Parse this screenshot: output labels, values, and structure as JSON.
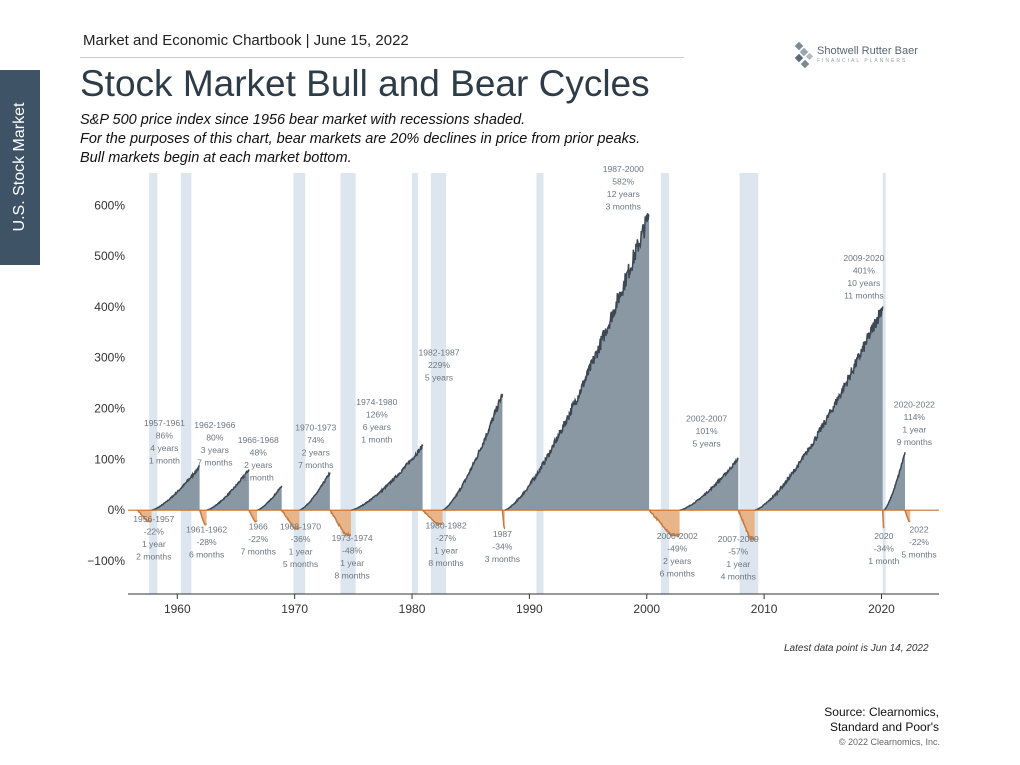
{
  "side_tab": "U.S. Stock Market",
  "header": {
    "line": "Market and Economic Chartbook | June 15, 2022",
    "title": "Stock Market Bull and Bear Cycles",
    "subtitles": [
      "S&P 500 price index since 1956 bear market with recessions shaded.",
      "For the purposes of this chart, bear markets are 20% declines in price from prior peaks.",
      "Bull markets begin at each market bottom."
    ]
  },
  "logo": {
    "name": "Shotwell Rutter Baer",
    "tagline": "FINANCIAL PLANNERS"
  },
  "footnote": "Latest data point is Jun 14, 2022",
  "source": [
    "Source: Clearnomics,",
    "Standard and Poor's"
  ],
  "copyright": "© 2022 Clearnomics, Inc.",
  "colors": {
    "bull_fill": "#8a98a4",
    "bull_line": "#3b4853",
    "bear_fill": "#e8b48a",
    "bear_line": "#c57a3f",
    "recession": "#dde6ef",
    "zero_line": "#c8722e"
  },
  "chart_data": {
    "type": "area",
    "title": "Stock Market Bull and Bear Cycles",
    "xlim": [
      1955.8,
      2024.9
    ],
    "ylim": [
      -165,
      640
    ],
    "y_ticks": [
      {
        "value": 600,
        "label": "600%"
      },
      {
        "value": 500,
        "label": "500%"
      },
      {
        "value": 400,
        "label": "400%"
      },
      {
        "value": 300,
        "label": "300%"
      },
      {
        "value": 200,
        "label": "200%"
      },
      {
        "value": 100,
        "label": "100%"
      },
      {
        "value": 0,
        "label": "0%"
      },
      {
        "value": -100,
        "label": "−100%"
      }
    ],
    "x_ticks": [
      {
        "value": 1960,
        "label": "1960"
      },
      {
        "value": 1970,
        "label": "1970"
      },
      {
        "value": 1980,
        "label": "1980"
      },
      {
        "value": 1990,
        "label": "1990"
      },
      {
        "value": 2000,
        "label": "2000"
      },
      {
        "value": 2010,
        "label": "2010"
      },
      {
        "value": 2020,
        "label": "2020"
      }
    ],
    "recessions": [
      [
        1957.6,
        1958.3
      ],
      [
        1960.3,
        1961.2
      ],
      [
        1969.9,
        1970.9
      ],
      [
        1973.9,
        1975.2
      ],
      [
        1980.0,
        1980.5
      ],
      [
        1981.6,
        1982.9
      ],
      [
        1990.6,
        1991.2
      ],
      [
        2001.2,
        2001.9
      ],
      [
        2007.9,
        2009.5
      ],
      [
        2020.1,
        2020.3
      ]
    ],
    "bull_markets": [
      {
        "label": "1957-1961",
        "start": 1957.8,
        "end": 1961.9,
        "gain": 86,
        "duration": "4 years",
        "duration2": "1 month",
        "annot_x": 1958.9,
        "annot_y": 166
      },
      {
        "label": "1962-1966",
        "start": 1962.5,
        "end": 1966.1,
        "gain": 80,
        "duration": "3 years",
        "duration2": "7 months",
        "annot_x": 1963.2,
        "annot_y": 162
      },
      {
        "label": "1966-1968",
        "start": 1966.8,
        "end": 1968.9,
        "gain": 48,
        "duration": "2 years",
        "duration2": "1 month",
        "annot_x": 1966.9,
        "annot_y": 132
      },
      {
        "label": "1970-1973",
        "start": 1970.4,
        "end": 1973.0,
        "gain": 74,
        "duration": "2 years",
        "duration2": "7 months",
        "annot_x": 1971.8,
        "annot_y": 157
      },
      {
        "label": "1974-1980",
        "start": 1974.8,
        "end": 1980.9,
        "gain": 126,
        "duration": "6 years",
        "duration2": "1 month",
        "annot_x": 1977.0,
        "annot_y": 207
      },
      {
        "label": "1982-1987",
        "start": 1982.6,
        "end": 1987.7,
        "gain": 229,
        "duration": "5 years",
        "duration2": "",
        "annot_x": 1982.3,
        "annot_y": 304
      },
      {
        "label": "1987-2000",
        "start": 1987.9,
        "end": 2000.2,
        "gain": 582,
        "duration": "12 years",
        "duration2": "3 months",
        "annot_x": 1998.0,
        "annot_y": 666
      },
      {
        "label": "2002-2007",
        "start": 2002.8,
        "end": 2007.8,
        "gain": 101,
        "duration": "5 years",
        "duration2": "",
        "annot_x": 2005.1,
        "annot_y": 175
      },
      {
        "label": "2009-2020",
        "start": 2009.2,
        "end": 2020.1,
        "gain": 401,
        "duration": "10 years",
        "duration2": "11 months",
        "annot_x": 2018.5,
        "annot_y": 490
      },
      {
        "label": "2020-2022",
        "start": 2020.2,
        "end": 2022.0,
        "gain": 114,
        "duration": "1 year",
        "duration2": "9 months",
        "annot_x": 2022.8,
        "annot_y": 202
      }
    ],
    "bear_markets": [
      {
        "label": "1956-1957",
        "start": 1956.6,
        "end": 1957.8,
        "decline": -22,
        "duration": "1 year",
        "duration2": "2 months",
        "annot_x": 1958.0,
        "annot_y": -23
      },
      {
        "label": "1961-1962",
        "start": 1961.9,
        "end": 1962.5,
        "decline": -28,
        "duration": "6 months",
        "duration2": "",
        "annot_x": 1962.5,
        "annot_y": -44
      },
      {
        "label": "1966",
        "start": 1966.1,
        "end": 1966.8,
        "decline": -22,
        "duration": "7 months",
        "duration2": "",
        "annot_x": 1966.9,
        "annot_y": -38
      },
      {
        "label": "1968-1970",
        "start": 1968.9,
        "end": 1970.4,
        "decline": -36,
        "duration": "1 year",
        "duration2": "5 months",
        "annot_x": 1970.5,
        "annot_y": -38
      },
      {
        "label": "1973-1974",
        "start": 1973.0,
        "end": 1974.8,
        "decline": -48,
        "duration": "1 year",
        "duration2": "8 months",
        "annot_x": 1974.9,
        "annot_y": -61
      },
      {
        "label": "1980-1982",
        "start": 1980.9,
        "end": 1982.6,
        "decline": -27,
        "duration": "1 year",
        "duration2": "8 months",
        "annot_x": 1982.9,
        "annot_y": -36
      },
      {
        "label": "1987",
        "start": 1987.7,
        "end": 1987.9,
        "decline": -34,
        "duration": "3 months",
        "duration2": "",
        "annot_x": 1987.7,
        "annot_y": -53
      },
      {
        "label": "2000-2002",
        "start": 2000.2,
        "end": 2002.8,
        "decline": -49,
        "duration": "2 years",
        "duration2": "6 months",
        "annot_x": 2002.6,
        "annot_y": -57
      },
      {
        "label": "2007-2009",
        "start": 2007.8,
        "end": 2009.2,
        "decline": -57,
        "duration": "1 year",
        "duration2": "4 months",
        "annot_x": 2007.8,
        "annot_y": -63
      },
      {
        "label": "2020",
        "start": 2020.1,
        "end": 2020.2,
        "decline": -34,
        "duration": "1 month",
        "duration2": "",
        "annot_x": 2020.2,
        "annot_y": -57
      },
      {
        "label": "2022",
        "start": 2022.0,
        "end": 2022.45,
        "decline": -22,
        "duration": "5 months",
        "duration2": "",
        "annot_x": 2023.2,
        "annot_y": -44
      }
    ]
  }
}
